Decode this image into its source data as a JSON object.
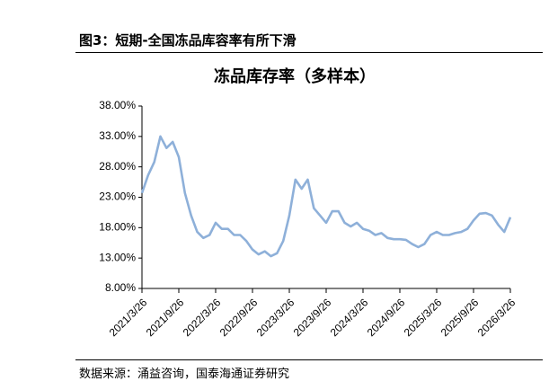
{
  "header": {
    "title": "图3：短期-全国冻品库容率有所下滑"
  },
  "footer": {
    "source": "数据来源：涌益咨询，国泰海通证券研究"
  },
  "chart_data": {
    "type": "line",
    "title": "冻品库存率（多样本）",
    "x": [
      "2021/3/26",
      "2021/4/26",
      "2021/5/26",
      "2021/6/26",
      "2021/7/26",
      "2021/8/26",
      "2021/9/26",
      "2021/10/26",
      "2021/11/26",
      "2021/12/26",
      "2022/1/26",
      "2022/2/26",
      "2022/3/26",
      "2022/4/26",
      "2022/5/26",
      "2022/6/26",
      "2022/7/26",
      "2022/8/26",
      "2022/9/26",
      "2022/10/26",
      "2022/11/26",
      "2022/12/26",
      "2023/1/26",
      "2023/2/26",
      "2023/3/26",
      "2023/4/26",
      "2023/5/26",
      "2023/6/26",
      "2023/7/26",
      "2023/8/26",
      "2023/9/26",
      "2023/10/26",
      "2023/11/26",
      "2023/12/26",
      "2024/1/26",
      "2024/2/26",
      "2024/3/26",
      "2024/4/26",
      "2024/5/26",
      "2024/6/26",
      "2024/7/26",
      "2024/8/26",
      "2024/9/26",
      "2024/10/26",
      "2024/11/26",
      "2024/12/26",
      "2025/1/26",
      "2025/2/26",
      "2025/3/26",
      "2025/4/26",
      "2025/5/26",
      "2025/6/26",
      "2025/7/26",
      "2025/8/26",
      "2025/9/26",
      "2025/10/26",
      "2025/11/26",
      "2025/12/26",
      "2026/1/26",
      "2026/2/26",
      "2026/3/26"
    ],
    "series": [
      {
        "name": "冻品库存率",
        "color": "#8eb0d9",
        "values": [
          23.7,
          26.6,
          28.8,
          33.0,
          31.1,
          32.1,
          29.6,
          23.7,
          20.0,
          17.3,
          16.3,
          16.8,
          18.8,
          17.8,
          17.8,
          16.8,
          16.8,
          15.8,
          14.4,
          13.6,
          14.1,
          13.3,
          13.8,
          15.8,
          20.0,
          25.9,
          24.4,
          25.9,
          21.2,
          20.0,
          18.8,
          20.7,
          20.7,
          18.8,
          18.2,
          18.8,
          17.8,
          17.5,
          16.8,
          17.1,
          16.3,
          16.1,
          16.1,
          16.0,
          15.3,
          14.8,
          15.3,
          16.8,
          17.3,
          16.8,
          16.8,
          17.1,
          17.3,
          17.8,
          19.2,
          20.3,
          20.4,
          20.0,
          18.5,
          17.3,
          19.7
        ]
      }
    ],
    "xlim": [
      "2021/3/26",
      "2026/3/26"
    ],
    "xticks": [
      "2021/3/26",
      "2021/9/26",
      "2022/3/26",
      "2022/9/26",
      "2023/3/26",
      "2023/9/26",
      "2024/3/26",
      "2024/9/26",
      "2025/3/26",
      "2025/9/26",
      "2026/3/26"
    ],
    "ylim": [
      8,
      38
    ],
    "yticks": [
      {
        "value": 8,
        "label": "8.00%"
      },
      {
        "value": 13,
        "label": "13.00%"
      },
      {
        "value": 18,
        "label": "18.00%"
      },
      {
        "value": 23,
        "label": "23.00%"
      },
      {
        "value": 28,
        "label": "28.00%"
      },
      {
        "value": 33,
        "label": "33.00%"
      },
      {
        "value": 38,
        "label": "38.00%"
      }
    ]
  }
}
